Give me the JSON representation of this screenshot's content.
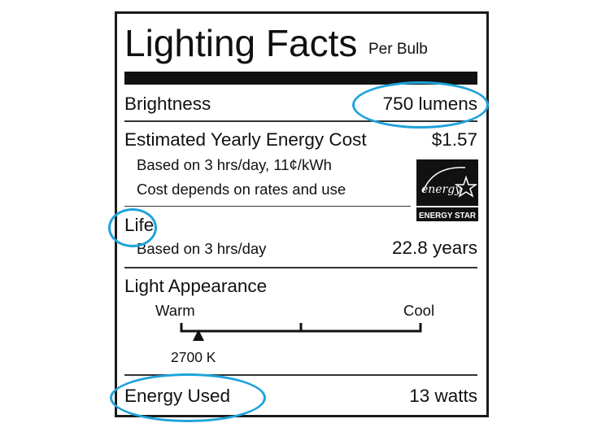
{
  "label": {
    "title": "Lighting Facts",
    "subtitle": "Per Bulb",
    "brightness": {
      "label": "Brightness",
      "value": "750 lumens"
    },
    "energy_cost": {
      "label": "Estimated Yearly Energy Cost",
      "value": "$1.57",
      "note_1": "Based on 3 hrs/day, 11¢/kWh",
      "note_2": "Cost depends on rates and use"
    },
    "life": {
      "label": "Life",
      "note": "Based on 3 hrs/day",
      "value": "22.8 years"
    },
    "light_appearance": {
      "label": "Light Appearance",
      "warm": "Warm",
      "cool": "Cool",
      "value": "2700 K",
      "scale_min_k": 2700,
      "scale_max_k": 6500
    },
    "energy_used": {
      "label": "Energy Used",
      "value": "13 watts"
    },
    "logo": {
      "script_text": "energy",
      "caption": "ENERGY STAR"
    }
  },
  "highlight_color": "#1ea3da"
}
